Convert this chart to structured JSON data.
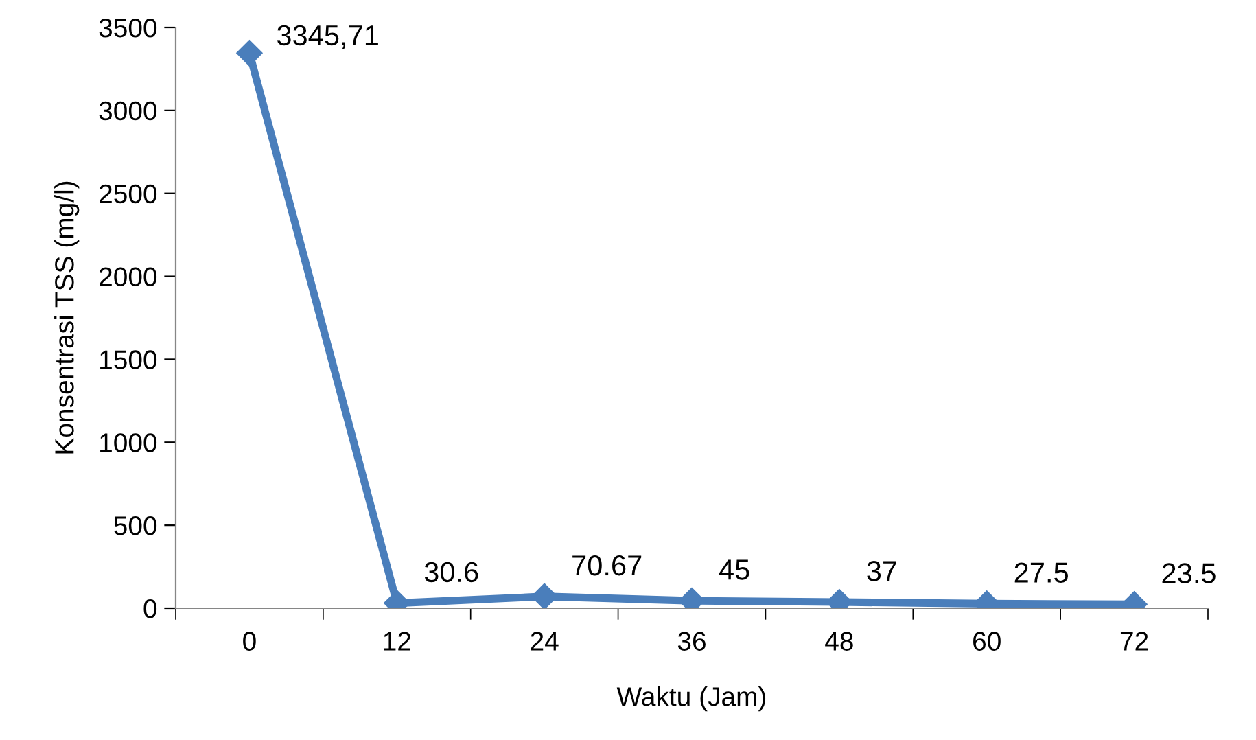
{
  "chart_data": {
    "type": "line",
    "xlabel": "Waktu (Jam)",
    "ylabel": "Konsentrasi TSS (mg/l)",
    "categories": [
      "0",
      "12",
      "24",
      "36",
      "48",
      "60",
      "72"
    ],
    "series": [
      {
        "color": "#4a7ebb",
        "values": [
          3345.71,
          30.6,
          70.67,
          45,
          37,
          27.5,
          23.5
        ],
        "value_labels": [
          "3345,71",
          "30.6",
          "70.67",
          "45",
          "37",
          "27.5",
          "23.5"
        ]
      }
    ],
    "ylim": [
      0,
      3500
    ],
    "yticks": [
      0,
      500,
      1000,
      1500,
      2000,
      2500,
      3000,
      3500
    ],
    "marker": "diamond",
    "line_style": "solid"
  }
}
